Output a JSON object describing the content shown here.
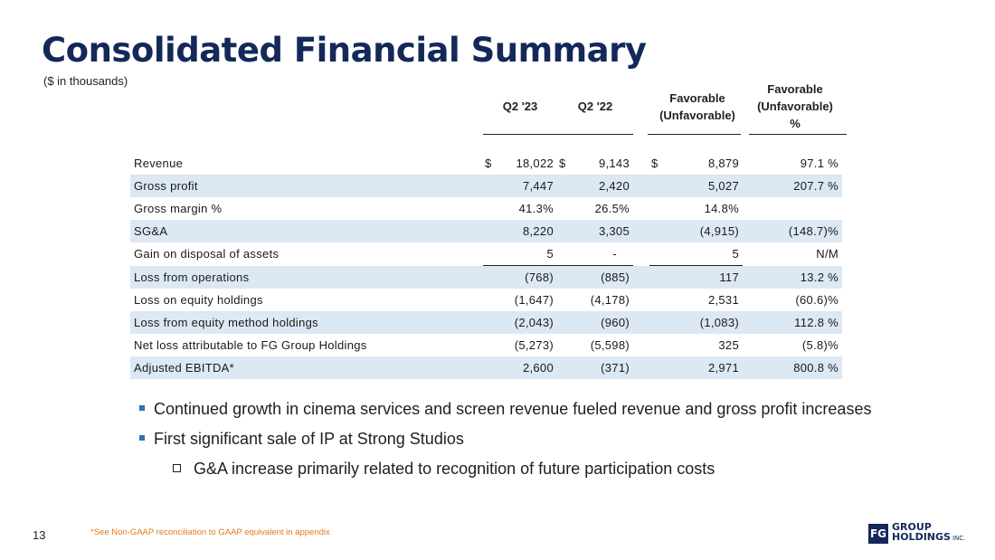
{
  "page": {
    "title": "Consolidated Financial Summary",
    "subtitle": "($ in thousands)",
    "page_number": "13",
    "footnote": "*See Non-GAAP reconciliation to GAAP equivalent in appendix"
  },
  "table": {
    "headers": {
      "q2_23": "Q2 '23",
      "q2_22": "Q2 '22",
      "fav_line1": "Favorable",
      "fav_line2": "(Unfavorable)",
      "favpct_line1": "Favorable",
      "favpct_line2": "(Unfavorable)",
      "favpct_line3": "%"
    },
    "rows": [
      {
        "label": "Revenue",
        "cur": "$",
        "q23": "18,022",
        "q22": "9,143",
        "fav": "8,879",
        "pct": "97.1 %"
      },
      {
        "label": "Gross profit",
        "cur": "",
        "q23": "7,447",
        "q22": "2,420",
        "fav": "5,027",
        "pct": "207.7 %"
      },
      {
        "label": "Gross margin %",
        "cur": "",
        "q23": "41.3%",
        "q22": "26.5%",
        "fav": "14.8%",
        "pct": ""
      },
      {
        "label": "SG&A",
        "cur": "",
        "q23": "8,220",
        "q22": "3,305",
        "fav": "(4,915)",
        "pct": "(148.7)%"
      },
      {
        "label": "Gain on disposal of assets",
        "cur": "",
        "q23": "5",
        "q22": "-",
        "fav": "5",
        "pct": "N/M"
      },
      {
        "label": "Loss from operations",
        "cur": "",
        "q23": "(768)",
        "q22": "(885)",
        "fav": "117",
        "pct": "13.2 %"
      },
      {
        "label": "Loss on equity holdings",
        "cur": "",
        "q23": "(1,647)",
        "q22": "(4,178)",
        "fav": "2,531",
        "pct": "(60.6)%"
      },
      {
        "label": "Loss from equity method holdings",
        "cur": "",
        "q23": "(2,043)",
        "q22": "(960)",
        "fav": "(1,083)",
        "pct": "112.8 %"
      },
      {
        "label": "Net loss attributable to FG Group Holdings",
        "cur": "",
        "q23": "(5,273)",
        "q22": "(5,598)",
        "fav": "325",
        "pct": "(5.8)%"
      },
      {
        "label": "Adjusted EBITDA*",
        "cur": "",
        "q23": "2,600",
        "q22": "(371)",
        "fav": "2,971",
        "pct": "800.8 %"
      }
    ]
  },
  "bullets": [
    "Continued growth in cinema services and screen revenue fueled revenue and gross profit increases",
    "First significant sale of IP at Strong Studios"
  ],
  "sub_bullet": "G&A increase primarily related to recognition of future participation costs",
  "logo": {
    "mark": "FG",
    "line1": "GROUP",
    "line2": "HOLDINGS",
    "suffix": "INC.",
    "brand_color": "#14285a"
  }
}
